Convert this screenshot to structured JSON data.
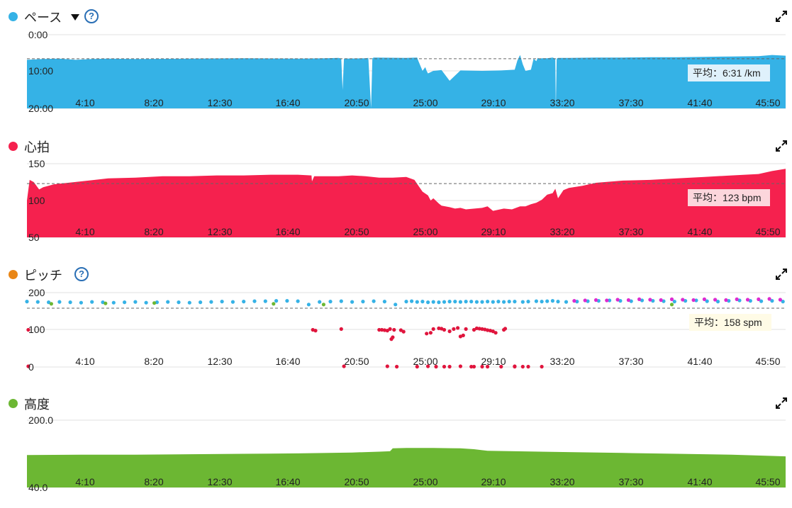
{
  "colors": {
    "pace": "#35b2e6",
    "heart": "#f5214e",
    "cadence_dot": "#e98616",
    "elevation": "#6cb733",
    "help": "#2a6fb5"
  },
  "icons": {
    "help": "question-circle-icon",
    "expand": "expand-arrows-icon",
    "dropdown": "caret-down-icon"
  },
  "chart_data": [
    {
      "type": "area",
      "title": "ペース",
      "y_ticks": [
        "0:00",
        "10:00",
        "20:00"
      ],
      "ylim_min": [
        0,
        20
      ],
      "y_reversed": true,
      "x_ticks": [
        "4:10",
        "8:20",
        "12:30",
        "16:40",
        "20:50",
        "25:00",
        "29:10",
        "33:20",
        "37:30",
        "41:40",
        "45:50"
      ],
      "xlim_sec": [
        0,
        2800
      ],
      "average_label": "平均：6:31 /km",
      "average_min": 6.52,
      "series": [
        {
          "x_sec": [
            0,
            60,
            120,
            180,
            240,
            300,
            400,
            600,
            800,
            1000,
            1100,
            1150,
            1160,
            1165,
            1170,
            1250,
            1260,
            1270,
            1275,
            1280,
            1400,
            1440,
            1445,
            1460,
            1470,
            1475,
            1480,
            1500,
            1530,
            1560,
            1600,
            1680,
            1750,
            1800,
            1810,
            1820,
            1830,
            1840,
            1860,
            1870,
            1880,
            1885,
            1890,
            1900,
            1920,
            1940,
            1950,
            1952,
            1955,
            1960,
            2000,
            2100,
            2200,
            2300,
            2400,
            2500,
            2600,
            2700,
            2750,
            2800
          ],
          "y_min": [
            6.8,
            6.6,
            6.5,
            6.8,
            6.6,
            6.5,
            6.6,
            6.5,
            6.4,
            6.5,
            6.4,
            6.3,
            6.5,
            15.0,
            6.5,
            6.4,
            6.3,
            19.9,
            6.4,
            6.2,
            6.3,
            6.2,
            7.2,
            9.8,
            8.8,
            9.8,
            10.5,
            9.8,
            9.6,
            12.5,
            9.7,
            9.8,
            9.7,
            9.5,
            7.0,
            5.5,
            8.0,
            9.8,
            9.5,
            6.5,
            7.2,
            6.3,
            6.5,
            6.4,
            6.4,
            6.2,
            6.5,
            20.0,
            6.5,
            6.3,
            6.3,
            6.2,
            6.2,
            6.1,
            6.1,
            6.0,
            5.9,
            5.8,
            5.5,
            5.7
          ]
        }
      ]
    },
    {
      "type": "area",
      "title": "心拍",
      "y_ticks": [
        "150",
        "100",
        "50"
      ],
      "ylim": [
        50,
        150
      ],
      "x_ticks": [
        "4:10",
        "8:20",
        "12:30",
        "16:40",
        "20:50",
        "25:00",
        "29:10",
        "33:20",
        "37:30",
        "41:40",
        "45:50"
      ],
      "xlim_sec": [
        0,
        2800
      ],
      "average_label": "平均：123 bpm",
      "average": 123,
      "series": [
        {
          "x_sec": [
            0,
            10,
            25,
            45,
            60,
            100,
            200,
            300,
            400,
            500,
            600,
            700,
            800,
            900,
            1000,
            1050,
            1052,
            1060,
            1100,
            1150,
            1200,
            1250,
            1300,
            1350,
            1400,
            1430,
            1445,
            1460,
            1480,
            1490,
            1500,
            1520,
            1530,
            1560,
            1580,
            1600,
            1620,
            1680,
            1700,
            1720,
            1760,
            1790,
            1820,
            1840,
            1860,
            1880,
            1900,
            1920,
            1940,
            1950,
            1960,
            1980,
            2000,
            2050,
            2100,
            2200,
            2300,
            2400,
            2500,
            2600,
            2700,
            2750,
            2800
          ],
          "y": [
            100,
            128,
            125,
            115,
            118,
            122,
            126,
            130,
            131,
            133,
            133,
            134,
            134,
            135,
            135,
            134,
            126,
            133,
            133,
            133,
            134,
            133,
            131,
            131,
            132,
            128,
            120,
            112,
            107,
            100,
            103,
            96,
            93,
            91,
            89,
            90,
            88,
            90,
            92,
            86,
            89,
            88,
            92,
            92,
            95,
            97,
            101,
            108,
            110,
            116,
            103,
            114,
            117,
            120,
            124,
            127,
            128,
            130,
            132,
            134,
            136,
            140,
            143
          ]
        }
      ]
    },
    {
      "type": "scatter",
      "title": "ピッチ",
      "y_ticks": [
        "200",
        "100",
        "0"
      ],
      "ylim": [
        0,
        200
      ],
      "x_ticks": [
        "4:10",
        "8:20",
        "12:30",
        "16:40",
        "20:50",
        "25:00",
        "29:10",
        "33:20",
        "37:30",
        "41:40",
        "45:50"
      ],
      "xlim_sec": [
        0,
        2800
      ],
      "average_label": "平均：158 spm",
      "average": 158,
      "series": [
        {
          "color": "#35b2e6",
          "x_sec": [
            0,
            40,
            80,
            120,
            160,
            200,
            240,
            280,
            320,
            360,
            400,
            440,
            480,
            520,
            560,
            600,
            640,
            680,
            720,
            760,
            800,
            840,
            880,
            920,
            960,
            1000,
            1040,
            1080,
            1120,
            1160,
            1200,
            1240,
            1280,
            1320,
            1360,
            1400,
            1420,
            1440,
            1460,
            1480,
            1500,
            1520,
            1540,
            1560,
            1580,
            1600,
            1620,
            1640,
            1660,
            1680,
            1700,
            1720,
            1740,
            1760,
            1780,
            1800,
            1830,
            1850,
            1880,
            1900,
            1920,
            1940,
            1960,
            1990,
            2030,
            2070,
            2110,
            2150,
            2190,
            2230,
            2270,
            2310,
            2350,
            2390,
            2430,
            2470,
            2510,
            2550,
            2590,
            2630,
            2670,
            2710,
            2750,
            2790
          ],
          "y": [
            176,
            175,
            174,
            175,
            174,
            173,
            175,
            174,
            173,
            174,
            175,
            173,
            174,
            175,
            174,
            173,
            174,
            175,
            176,
            175,
            176,
            177,
            177,
            178,
            178,
            177,
            168,
            175,
            176,
            177,
            175,
            176,
            177,
            176,
            168,
            176,
            177,
            175,
            176,
            174,
            175,
            174,
            175,
            176,
            176,
            175,
            176,
            176,
            175,
            175,
            176,
            175,
            176,
            175,
            176,
            176,
            175,
            176,
            177,
            176,
            177,
            178,
            176,
            175,
            176,
            177,
            178,
            179,
            178,
            177,
            179,
            178,
            177,
            176,
            178,
            179,
            177,
            176,
            178,
            179,
            178,
            177,
            178,
            176
          ]
        },
        {
          "color": "#dd2bd0",
          "x_sec": [
            2020,
            2060,
            2100,
            2140,
            2180,
            2220,
            2260,
            2300,
            2340,
            2380,
            2420,
            2460,
            2500,
            2540,
            2580,
            2620,
            2660,
            2700,
            2740,
            2780
          ],
          "y": [
            178,
            179,
            180,
            179,
            181,
            180,
            182,
            181,
            180,
            182,
            181,
            180,
            182,
            181,
            180,
            182,
            181,
            182,
            183,
            181
          ]
        },
        {
          "color": "#6cb733",
          "x_sec": [
            90,
            290,
            470,
            910,
            1095,
            2380
          ],
          "y": [
            170,
            171,
            172,
            170,
            168,
            168
          ]
        },
        {
          "color": "#e0153d",
          "x_sec": [
            5,
            1055,
            1065,
            1160,
            1300,
            1310,
            1320,
            1330,
            1340,
            1350,
            1345,
            1355,
            1380,
            1390,
            1475,
            1490,
            1500,
            1520,
            1530,
            1540,
            1560,
            1575,
            1590,
            1620,
            1650,
            1600,
            1610,
            1660,
            1670,
            1680,
            1690,
            1700,
            1710,
            1720,
            1730,
            1760,
            1765,
            1800,
            1640,
            1680,
            1830,
            5,
            1170,
            1330,
            1365,
            1440,
            1480,
            1510,
            1540,
            1560,
            1600,
            1650,
            1700,
            1750,
            1800,
            1850,
            1900
          ],
          "y": [
            100,
            100,
            98,
            102,
            100,
            100,
            99,
            98,
            102,
            80,
            75,
            100,
            99,
            95,
            90,
            92,
            102,
            104,
            103,
            100,
            96,
            102,
            105,
            102,
            100,
            82,
            85,
            104,
            103,
            102,
            101,
            99,
            98,
            96,
            92,
            100,
            103,
            2,
            1,
            1,
            1,
            2,
            2,
            2,
            1,
            1,
            2,
            1,
            1,
            1,
            2,
            1,
            1,
            1,
            1,
            1,
            1
          ]
        }
      ]
    },
    {
      "type": "area",
      "title": "高度",
      "y_ticks": [
        "200.0",
        "40.0"
      ],
      "ylim": [
        40,
        200
      ],
      "x_ticks": [
        "4:10",
        "8:20",
        "12:30",
        "16:40",
        "20:50",
        "25:00",
        "29:10",
        "33:20",
        "37:30",
        "41:40",
        "45:50"
      ],
      "xlim_sec": [
        0,
        2800
      ],
      "series": [
        {
          "x_sec": [
            0,
            200,
            400,
            600,
            800,
            1000,
            1200,
            1300,
            1340,
            1350,
            1400,
            1500,
            1600,
            1650,
            1700,
            1800,
            2000,
            2200,
            2400,
            2600,
            2750,
            2800
          ],
          "y": [
            117,
            118,
            118,
            119,
            120,
            121,
            123,
            125,
            126,
            133,
            134,
            134,
            133,
            131,
            127,
            126,
            124,
            122,
            120,
            118,
            115,
            114
          ]
        }
      ]
    }
  ]
}
